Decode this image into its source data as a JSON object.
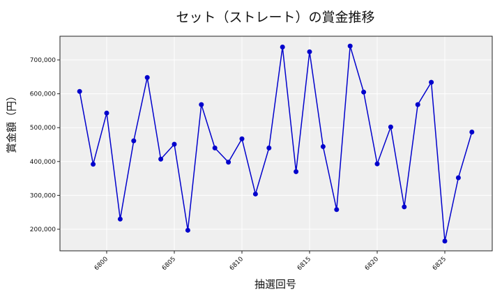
{
  "chart_data": {
    "type": "line",
    "title": "セット（ストレート）の賞金推移",
    "xlabel": "抽選回号",
    "ylabel": "賞金額（円）",
    "x": [
      6798,
      6799,
      6800,
      6801,
      6802,
      6803,
      6804,
      6805,
      6806,
      6807,
      6808,
      6809,
      6810,
      6811,
      6812,
      6813,
      6814,
      6815,
      6816,
      6817,
      6818,
      6819,
      6820,
      6821,
      6822,
      6823,
      6824,
      6825,
      6826,
      6827
    ],
    "series": [
      {
        "name": "賞金額",
        "color": "#0000cc",
        "values": [
          607000,
          392000,
          543000,
          230000,
          461000,
          648000,
          407000,
          451000,
          197000,
          568000,
          440000,
          398000,
          467000,
          304000,
          440000,
          738000,
          370000,
          724000,
          444000,
          258000,
          741000,
          605000,
          393000,
          502000,
          266000,
          568000,
          634000,
          165000,
          352000,
          487000
        ]
      }
    ],
    "xticks": [
      6800,
      6805,
      6810,
      6815,
      6820,
      6825
    ],
    "yticks": [
      200000,
      300000,
      400000,
      500000,
      600000,
      700000
    ],
    "ytick_labels": [
      "200,000",
      "300,000",
      "400,000",
      "500,000",
      "600,000",
      "700,000"
    ],
    "ylim": [
      135000,
      775000
    ],
    "xlim": [
      6796.6,
      6828.4
    ],
    "grid": true,
    "legend": null
  }
}
